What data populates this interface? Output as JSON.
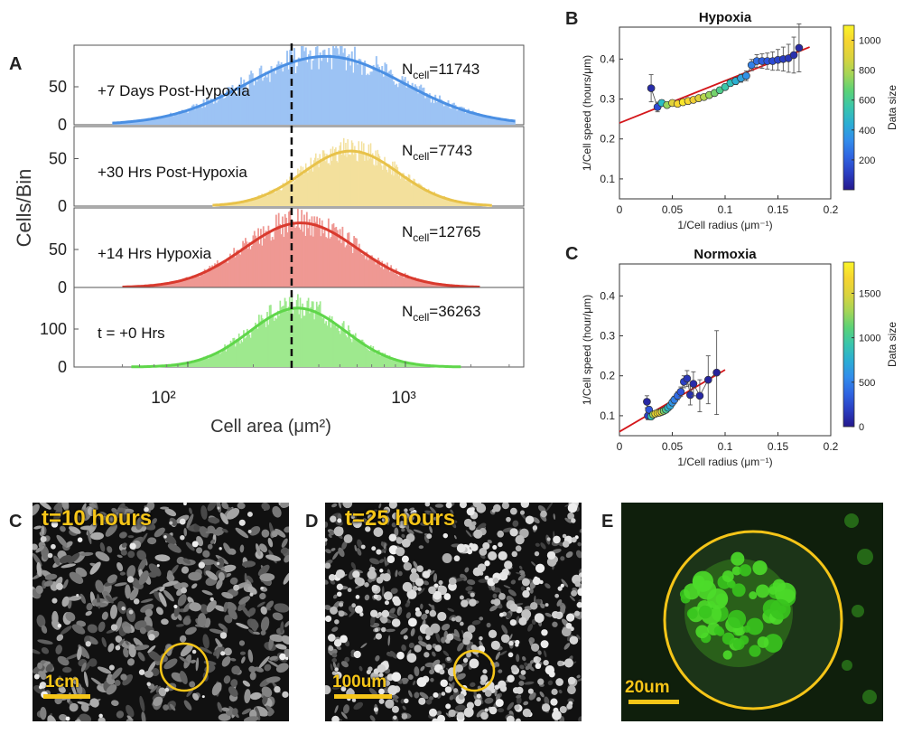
{
  "panels": {
    "a": "A",
    "b": "B",
    "c_top": "C",
    "c_bottom": "C",
    "d": "D",
    "e": "E"
  },
  "chart_data": [
    {
      "type": "histogram",
      "panel": "A",
      "xlabel": "Cell area (μm²)",
      "ylabel": "Cells/Bin",
      "xscale": "log",
      "xlim": [
        30,
        3500
      ],
      "x_ticks": [
        "10²",
        "10³"
      ],
      "threshold_x": 300,
      "series": [
        {
          "name": "+7 Days Post-Hypoxia",
          "ncell": "N",
          "ncell_sub": "cell",
          "ncell_value": "=11743",
          "color": "#4a8fe3",
          "fill": "#9cc3f4",
          "peak": 90,
          "ymax": 100,
          "yticks": [
            "0",
            "50"
          ],
          "mu": 430,
          "sigma_log": 0.36,
          "hist_range": [
            45,
            3200
          ]
        },
        {
          "name": "+30 Hrs Post-Hypoxia",
          "ncell": "N",
          "ncell_sub": "cell",
          "ncell_value": "=7743",
          "color": "#e8c24a",
          "fill": "#f3e09c",
          "peak": 58,
          "ymax": 80,
          "yticks": [
            "0",
            "50"
          ],
          "mu": 560,
          "sigma_log": 0.22,
          "hist_range": [
            130,
            2500
          ]
        },
        {
          "name": "+14 Hrs Hypoxia",
          "ncell": "N",
          "ncell_sub": "cell",
          "ncell_value": "=12765",
          "color": "#d93a2e",
          "fill": "#ef9893",
          "peak": 85,
          "ymax": 100,
          "yticks": [
            "0",
            "50"
          ],
          "mu": 330,
          "sigma_log": 0.26,
          "hist_range": [
            50,
            2200
          ]
        },
        {
          "name": "t = +0 Hrs",
          "ncell": "N",
          "ncell_sub": "cell",
          "ncell_value": "=36263",
          "color": "#5fd64a",
          "fill": "#9ee98e",
          "peak": 155,
          "ymax": 200,
          "yticks": [
            "0",
            "100"
          ],
          "mu": 320,
          "sigma_log": 0.22,
          "hist_range": [
            55,
            1800
          ]
        }
      ]
    },
    {
      "type": "scatter",
      "panel": "B",
      "title": "Hypoxia",
      "xlabel": "1/Cell radius (μm⁻¹)",
      "ylabel": "1/Cell speed (hours/μm)",
      "xlim": [
        0,
        0.2
      ],
      "ylim": [
        0.05,
        0.48
      ],
      "xticks": [
        "0",
        "0.05",
        "0.1",
        "0.15",
        "0.2"
      ],
      "yticks": [
        "0.1",
        "0.2",
        "0.3",
        "0.4"
      ],
      "colorbar_label": "Data size",
      "colorbar_ticks": [
        "200",
        "400",
        "600",
        "800",
        "1000"
      ],
      "colorbar_range": [
        0,
        1100
      ],
      "fit_line": {
        "x": [
          0,
          0.18
        ],
        "y": [
          0.24,
          0.43
        ]
      },
      "points": [
        {
          "x": 0.03,
          "y": 0.327,
          "err": 0.034,
          "size_value": 60
        },
        {
          "x": 0.036,
          "y": 0.28,
          "err": 0.012,
          "size_value": 150
        },
        {
          "x": 0.04,
          "y": 0.29,
          "err": 0.008,
          "size_value": 500
        },
        {
          "x": 0.045,
          "y": 0.285,
          "err": 0.006,
          "size_value": 750
        },
        {
          "x": 0.05,
          "y": 0.29,
          "err": 0.005,
          "size_value": 900
        },
        {
          "x": 0.055,
          "y": 0.288,
          "err": 0.005,
          "size_value": 1000
        },
        {
          "x": 0.06,
          "y": 0.292,
          "err": 0.005,
          "size_value": 1050
        },
        {
          "x": 0.065,
          "y": 0.295,
          "err": 0.005,
          "size_value": 1000
        },
        {
          "x": 0.07,
          "y": 0.298,
          "err": 0.005,
          "size_value": 950
        },
        {
          "x": 0.075,
          "y": 0.302,
          "err": 0.005,
          "size_value": 900
        },
        {
          "x": 0.08,
          "y": 0.305,
          "err": 0.006,
          "size_value": 800
        },
        {
          "x": 0.085,
          "y": 0.31,
          "err": 0.006,
          "size_value": 750
        },
        {
          "x": 0.09,
          "y": 0.315,
          "err": 0.006,
          "size_value": 700
        },
        {
          "x": 0.095,
          "y": 0.322,
          "err": 0.007,
          "size_value": 620
        },
        {
          "x": 0.1,
          "y": 0.33,
          "err": 0.007,
          "size_value": 560
        },
        {
          "x": 0.105,
          "y": 0.34,
          "err": 0.008,
          "size_value": 520
        },
        {
          "x": 0.11,
          "y": 0.345,
          "err": 0.009,
          "size_value": 450
        },
        {
          "x": 0.115,
          "y": 0.352,
          "err": 0.01,
          "size_value": 400
        },
        {
          "x": 0.12,
          "y": 0.358,
          "err": 0.012,
          "size_value": 350
        },
        {
          "x": 0.125,
          "y": 0.385,
          "err": 0.014,
          "size_value": 300
        },
        {
          "x": 0.13,
          "y": 0.395,
          "err": 0.016,
          "size_value": 250
        },
        {
          "x": 0.135,
          "y": 0.395,
          "err": 0.018,
          "size_value": 200
        },
        {
          "x": 0.14,
          "y": 0.395,
          "err": 0.02,
          "size_value": 180
        },
        {
          "x": 0.145,
          "y": 0.395,
          "err": 0.023,
          "size_value": 150
        },
        {
          "x": 0.15,
          "y": 0.398,
          "err": 0.026,
          "size_value": 130
        },
        {
          "x": 0.155,
          "y": 0.4,
          "err": 0.03,
          "size_value": 110
        },
        {
          "x": 0.16,
          "y": 0.402,
          "err": 0.035,
          "size_value": 90
        },
        {
          "x": 0.165,
          "y": 0.41,
          "err": 0.045,
          "size_value": 70
        },
        {
          "x": 0.17,
          "y": 0.428,
          "err": 0.06,
          "size_value": 50
        }
      ]
    },
    {
      "type": "scatter",
      "panel": "C",
      "title": "Normoxia",
      "xlabel": "1/Cell radius (μm⁻¹)",
      "ylabel": "1/Cell speed (hour/μm)",
      "xlim": [
        0,
        0.2
      ],
      "ylim": [
        0.05,
        0.48
      ],
      "xticks": [
        "0",
        "0.05",
        "0.1",
        "0.15",
        "0.2"
      ],
      "yticks": [
        "0.1",
        "0.2",
        "0.3",
        "0.4"
      ],
      "colorbar_label": "Data size",
      "colorbar_ticks": [
        "0",
        "500",
        "1000",
        "1500"
      ],
      "colorbar_range": [
        0,
        1850
      ],
      "fit_line": {
        "x": [
          0,
          0.1
        ],
        "y": [
          0.06,
          0.215
        ]
      },
      "points": [
        {
          "x": 0.026,
          "y": 0.135,
          "err": 0.015,
          "size_value": 80
        },
        {
          "x": 0.027,
          "y": 0.1,
          "err": 0.01,
          "size_value": 200
        },
        {
          "x": 0.028,
          "y": 0.115,
          "err": 0.008,
          "size_value": 300
        },
        {
          "x": 0.03,
          "y": 0.098,
          "err": 0.005,
          "size_value": 900
        },
        {
          "x": 0.032,
          "y": 0.103,
          "err": 0.004,
          "size_value": 1300
        },
        {
          "x": 0.034,
          "y": 0.105,
          "err": 0.004,
          "size_value": 1700
        },
        {
          "x": 0.036,
          "y": 0.107,
          "err": 0.004,
          "size_value": 1800
        },
        {
          "x": 0.038,
          "y": 0.108,
          "err": 0.004,
          "size_value": 1600
        },
        {
          "x": 0.04,
          "y": 0.11,
          "err": 0.004,
          "size_value": 1400
        },
        {
          "x": 0.042,
          "y": 0.112,
          "err": 0.005,
          "size_value": 1200
        },
        {
          "x": 0.044,
          "y": 0.115,
          "err": 0.005,
          "size_value": 1000
        },
        {
          "x": 0.046,
          "y": 0.12,
          "err": 0.006,
          "size_value": 800
        },
        {
          "x": 0.048,
          "y": 0.125,
          "err": 0.007,
          "size_value": 700
        },
        {
          "x": 0.05,
          "y": 0.133,
          "err": 0.008,
          "size_value": 600
        },
        {
          "x": 0.052,
          "y": 0.14,
          "err": 0.009,
          "size_value": 500
        },
        {
          "x": 0.055,
          "y": 0.15,
          "err": 0.01,
          "size_value": 400
        },
        {
          "x": 0.058,
          "y": 0.16,
          "err": 0.012,
          "size_value": 300
        },
        {
          "x": 0.061,
          "y": 0.185,
          "err": 0.015,
          "size_value": 200
        },
        {
          "x": 0.064,
          "y": 0.193,
          "err": 0.02,
          "size_value": 150
        },
        {
          "x": 0.067,
          "y": 0.152,
          "err": 0.025,
          "size_value": 120
        },
        {
          "x": 0.07,
          "y": 0.18,
          "err": 0.03,
          "size_value": 100
        },
        {
          "x": 0.076,
          "y": 0.15,
          "err": 0.04,
          "size_value": 80
        },
        {
          "x": 0.084,
          "y": 0.19,
          "err": 0.06,
          "size_value": 60
        },
        {
          "x": 0.092,
          "y": 0.208,
          "err": 0.105,
          "size_value": 50
        }
      ]
    }
  ],
  "micrographs": [
    {
      "label": "t=10 hours",
      "scale": "1cm"
    },
    {
      "label": "t=25 hours",
      "scale": "100um"
    },
    {
      "label": "",
      "scale": "20um"
    }
  ]
}
